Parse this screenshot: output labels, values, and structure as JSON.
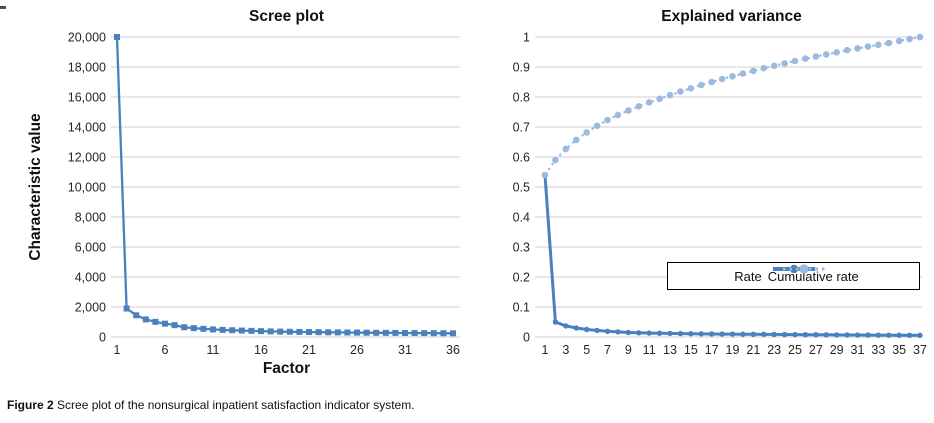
{
  "figure": {
    "caption_label": "Figure 2",
    "caption_text": " Scree plot of the nonsurgical inpatient satisfaction indicator system."
  },
  "colors": {
    "primary": "#4a80be",
    "secondary": "#9cb9e2",
    "gridline": "#d9d9d9",
    "tick_text": "#262626"
  },
  "chart_data": [
    {
      "type": "line",
      "title": "Scree plot",
      "xlabel": "Factor",
      "ylabel": "Characteristic value",
      "grid": true,
      "ylim": [
        0,
        20000
      ],
      "yticks": [
        "20,000",
        "18,000",
        "16,000",
        "14,000",
        "12,000",
        "10,000",
        "8,000",
        "6,000",
        "4,000",
        "2,000",
        "0"
      ],
      "xticks": [
        1,
        6,
        11,
        16,
        21,
        26,
        31,
        36
      ],
      "x": [
        1,
        2,
        3,
        4,
        5,
        6,
        7,
        8,
        9,
        10,
        11,
        12,
        13,
        14,
        15,
        16,
        17,
        18,
        19,
        20,
        21,
        22,
        23,
        24,
        25,
        26,
        27,
        28,
        29,
        30,
        31,
        32,
        33,
        34,
        35,
        36
      ],
      "series": [
        {
          "name": "Characteristic value",
          "line": "solid",
          "marker": "square",
          "color": "primary",
          "values": [
            20000,
            1900,
            1450,
            1170,
            1010,
            890,
            790,
            650,
            590,
            545,
            505,
            475,
            450,
            430,
            410,
            390,
            375,
            360,
            350,
            340,
            330,
            322,
            315,
            308,
            300,
            294,
            288,
            282,
            277,
            272,
            267,
            262,
            258,
            254,
            250,
            246
          ]
        }
      ]
    },
    {
      "type": "line",
      "title": "Explained variance",
      "xlabel": "",
      "ylabel": "",
      "grid": true,
      "ylim": [
        0,
        1
      ],
      "yticks": [
        "1",
        "0.9",
        "0.8",
        "0.7",
        "0.6",
        "0.5",
        "0.4",
        "0.3",
        "0.2",
        "0.1",
        "0"
      ],
      "xticks": [
        1,
        3,
        5,
        7,
        9,
        11,
        13,
        15,
        17,
        19,
        21,
        23,
        25,
        27,
        29,
        31,
        33,
        35,
        37
      ],
      "x": [
        1,
        2,
        3,
        4,
        5,
        6,
        7,
        8,
        9,
        10,
        11,
        12,
        13,
        14,
        15,
        16,
        17,
        18,
        19,
        20,
        21,
        22,
        23,
        24,
        25,
        26,
        27,
        28,
        29,
        30,
        31,
        32,
        33,
        34,
        35,
        36,
        37
      ],
      "legend_position": "inside lower right",
      "series": [
        {
          "name": "Rate",
          "line": "solid",
          "marker": "circle",
          "color": "primary",
          "values": [
            0.54,
            0.05,
            0.037,
            0.03,
            0.025,
            0.022,
            0.019,
            0.017,
            0.015,
            0.014,
            0.013,
            0.0125,
            0.012,
            0.0115,
            0.011,
            0.0105,
            0.01,
            0.0098,
            0.0095,
            0.0092,
            0.009,
            0.0088,
            0.0085,
            0.0082,
            0.008,
            0.0078,
            0.0075,
            0.0073,
            0.007,
            0.0068,
            0.0066,
            0.0064,
            0.0062,
            0.006,
            0.0058,
            0.0056,
            0.0055
          ]
        },
        {
          "name": "Cumulative rate",
          "line": "dotted",
          "marker": "circle",
          "color": "secondary",
          "values": [
            0.54,
            0.59,
            0.627,
            0.657,
            0.682,
            0.704,
            0.723,
            0.74,
            0.755,
            0.769,
            0.782,
            0.794,
            0.806,
            0.818,
            0.829,
            0.84,
            0.85,
            0.86,
            0.869,
            0.878,
            0.887,
            0.896,
            0.904,
            0.912,
            0.92,
            0.928,
            0.935,
            0.942,
            0.949,
            0.956,
            0.962,
            0.968,
            0.974,
            0.98,
            0.987,
            0.993,
            1.0
          ]
        }
      ]
    }
  ]
}
